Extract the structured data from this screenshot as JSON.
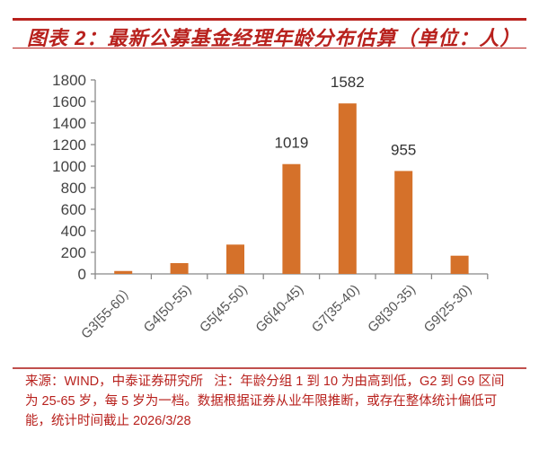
{
  "title": "图表 2：最新公募基金经理年龄分布估算（单位：人）",
  "footer": {
    "source": "来源：WIND，中泰证券研究所",
    "note": "注：年龄分组 1 到 10 为由高到低，G2 到 G9 区间为 25-65 岁，每 5 岁为一档。数据根据证券从业年限推断，或存在整体统计偏低可能，统计时间截止 2026/3/28"
  },
  "chart_data": {
    "type": "bar",
    "categories": [
      "G3[55-60）",
      "G4[50-55)",
      "G5[45-50)",
      "G6[40-45)",
      "G7[35-40)",
      "G8[30-35)",
      "G9[25-30)"
    ],
    "values": [
      27,
      100,
      272,
      1019,
      1582,
      955,
      169
    ],
    "data_labels": {
      "3": "1019",
      "4": "1582",
      "5": "955"
    },
    "ylim": [
      0,
      1800
    ],
    "yticks": [
      0,
      200,
      400,
      600,
      800,
      1000,
      1200,
      1400,
      1600,
      1800
    ],
    "grid": false,
    "bar_color": "#d5712a"
  }
}
